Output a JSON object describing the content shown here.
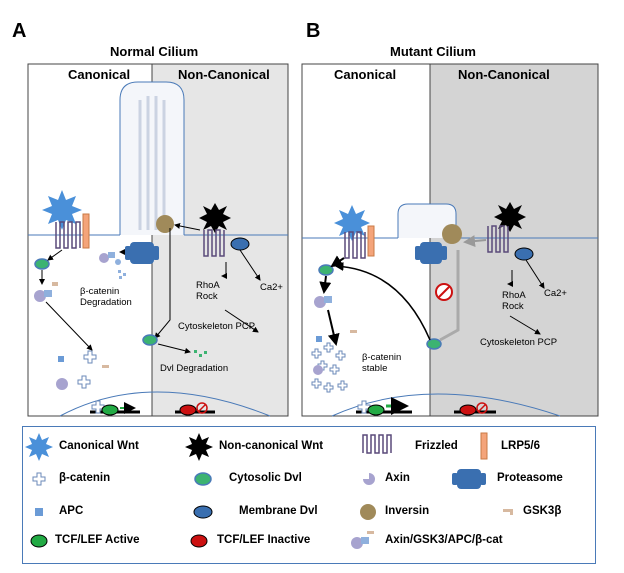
{
  "panelA": {
    "letter": "A",
    "title": "Normal Cilium",
    "canonical": "Canonical",
    "noncanonical": "Non-Canonical",
    "bcat_degradation": "β-catenin\nDegradation",
    "rhoa_rock": "RhoA\nRock",
    "ca2": "Ca2+",
    "cytoskeleton": "Cytoskeleton PCP",
    "dvl_degradation": "Dvl Degradation"
  },
  "panelB": {
    "letter": "B",
    "title": "Mutant Cilium",
    "canonical": "Canonical",
    "noncanonical": "Non-Canonical",
    "bcat_stable": "β-catenin\nstable",
    "rhoa_rock": "RhoA\nRock",
    "ca2": "Ca2+",
    "cytoskeleton": "Cytoskeleton PCP"
  },
  "legend": {
    "canonical_wnt": "Canonical Wnt",
    "noncanonical_wnt": "Non-canonical Wnt",
    "frizzled": "Frizzled",
    "lrp": "LRP5/6",
    "bcatenin": "β-catenin",
    "cytosolic_dvl": "Cytosolic Dvl",
    "axin": "Axin",
    "proteasome": "Proteasome",
    "apc": "APC",
    "membrane_dvl": "Membrane Dvl",
    "inversin": "Inversin",
    "gsk3b": "GSK3β",
    "tcf_active": "TCF/LEF Active",
    "tcf_inactive": "TCF/LEF Inactive",
    "complex": "Axin/GSK3/APC/β-cat"
  },
  "colors": {
    "membrane": "#4a7ab8",
    "frizzled": "#5a4a7a",
    "lrp": "#f4a47a",
    "wnt_canonical": "#4a90d9",
    "dvl_green": "#3cb371",
    "dvl_blue": "#3a6fb0",
    "inversin": "#a08a5a",
    "tcf_active": "#22aa44",
    "tcf_inactive": "#cc1111",
    "noncanonical_bg": "#e6e6e6",
    "mutant_noncanonical_bg": "#d4d4d4"
  }
}
